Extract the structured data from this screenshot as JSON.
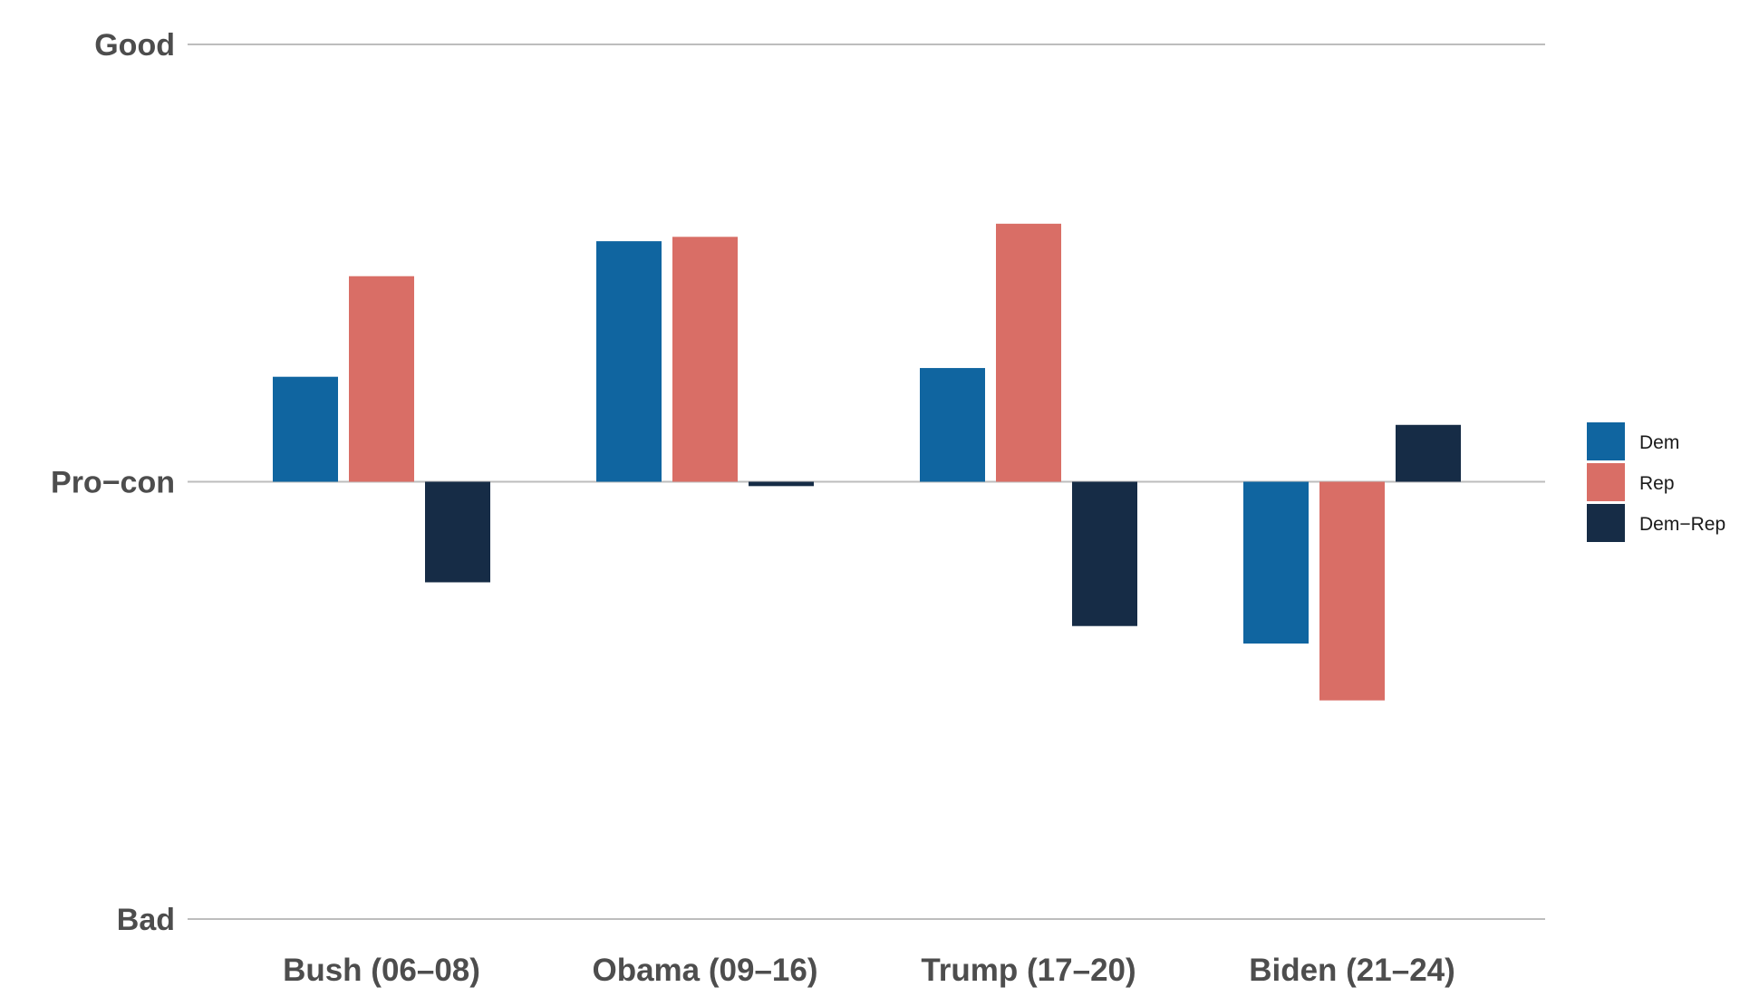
{
  "chart_data": {
    "type": "bar",
    "categories": [
      "Bush (06–08)",
      "Obama (09–16)",
      "Trump (17–20)",
      "Biden (21–24)"
    ],
    "series": [
      {
        "name": "Dem",
        "color": "#1065a0",
        "values": [
          0.24,
          0.55,
          0.26,
          -0.37
        ]
      },
      {
        "name": "Rep",
        "color": "#d96e66",
        "values": [
          0.47,
          0.56,
          0.59,
          -0.5
        ]
      },
      {
        "name": "Dem−Rep",
        "color": "#162c46",
        "values": [
          -0.23,
          -0.01,
          -0.33,
          0.13
        ]
      }
    ],
    "ylim": [
      -1,
      1
    ],
    "y_ticks": [
      {
        "value": 1,
        "label": "Good"
      },
      {
        "value": 0,
        "label": "Pro−con"
      },
      {
        "value": -1,
        "label": "Bad"
      }
    ],
    "grid": true,
    "legend_position": "right",
    "title": "",
    "xlabel": "",
    "ylabel": ""
  }
}
